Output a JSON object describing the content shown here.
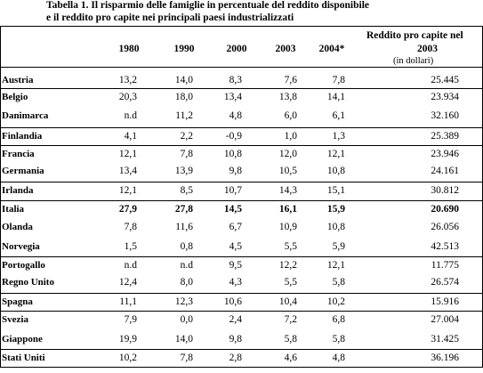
{
  "title_line1": "Tabella 1. Il risparmio delle famiglie in percentuale del reddito disponibile",
  "title_line2": "e il reddito pro capite nei principali paesi industrializzati",
  "columns": [
    "1980",
    "1990",
    "2000",
    "2003",
    "2004*"
  ],
  "income_header_line1": "Reddito  pro capite nel",
  "income_header_line2": "2003",
  "income_header_note": "(in dollari)",
  "rows": [
    {
      "country": "Austria",
      "values": [
        "13,2",
        "14,0",
        "8,3",
        "7,6",
        "7,8"
      ],
      "income": "25.445"
    },
    {
      "country": "Belgio",
      "values": [
        "20,3",
        "18,0",
        "13,4",
        "13,8",
        "14,1"
      ],
      "income": "23.934"
    },
    {
      "country": "Danimarca",
      "values": [
        "n.d",
        "11,2",
        "4,8",
        "6,0",
        "6,1"
      ],
      "income": "32.160"
    },
    {
      "country": "Finlandia",
      "values": [
        "4,1",
        "2,2",
        "-0,9",
        "1,0",
        "1,3"
      ],
      "income": "25.389"
    },
    {
      "country": "Francia",
      "values": [
        "12,1",
        "7,8",
        "10,8",
        "12,0",
        "12,1"
      ],
      "income": "23.946"
    },
    {
      "country": "Germania",
      "values": [
        "13,4",
        "13,9",
        "9,8",
        "10,5",
        "10,8"
      ],
      "income": "24.161"
    },
    {
      "country": "Irlanda",
      "values": [
        "12,1",
        "8,5",
        "10,7",
        "14,3",
        "15,1"
      ],
      "income": "30.812"
    },
    {
      "country": "Italia",
      "values": [
        "27,9",
        "27,8",
        "14,5",
        "16,1",
        "15,9"
      ],
      "income": "20.690",
      "bold": true
    },
    {
      "country": "Olanda",
      "values": [
        "7,8",
        "11,6",
        "6,7",
        "10,9",
        "10,8"
      ],
      "income": "26.056"
    },
    {
      "country": "Norvegia",
      "values": [
        "1,5",
        "0,8",
        "4,5",
        "5,5",
        "5,9"
      ],
      "income": "42.513"
    },
    {
      "country": "Portogallo",
      "values": [
        "n.d",
        "n.d",
        "9,5",
        "12,2",
        "12,1"
      ],
      "income": "11.775"
    },
    {
      "country": "Regno Unito",
      "values": [
        "12,4",
        "8,0",
        "4,3",
        "5,5",
        "5,8"
      ],
      "income": "26.574"
    },
    {
      "country": "Spagna",
      "values": [
        "11,1",
        "12,3",
        "10,6",
        "10,4",
        "10,2"
      ],
      "income": "15.916"
    },
    {
      "country": "Svezia",
      "values": [
        "7,9",
        "0,0",
        "2,4",
        "7,2",
        "6,8"
      ],
      "income": "27.004"
    },
    {
      "country": "Giappone",
      "values": [
        "19,9",
        "14,0",
        "9,8",
        "5,8",
        "5,8"
      ],
      "income": "31.425"
    },
    {
      "country": "Stati Uniti",
      "values": [
        "10,2",
        "7,8",
        "2,8",
        "4,6",
        "4,8"
      ],
      "income": "36.196"
    }
  ]
}
